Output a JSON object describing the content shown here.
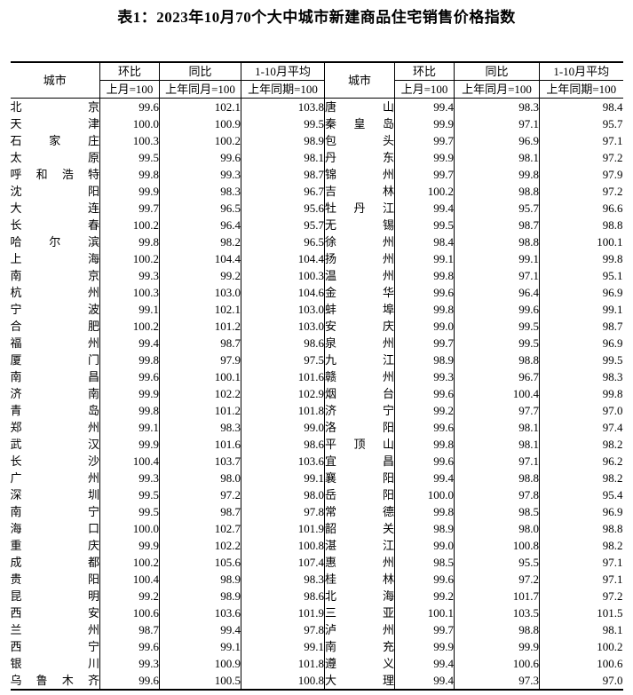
{
  "page": {
    "title": "表1：2023年10月70个大中城市新建商品住宅销售价格指数"
  },
  "table": {
    "header": {
      "city": "城市",
      "mom": "环比",
      "mom_sub": "上月=100",
      "yoy": "同比",
      "yoy_sub": "上年同月=100",
      "avg": "1-10月平均",
      "avg_sub": "上年同期=100"
    },
    "left_rows": [
      [
        "北京",
        "99.6",
        "102.1",
        "103.8"
      ],
      [
        "天津",
        "100.0",
        "100.9",
        "99.5"
      ],
      [
        "石家庄",
        "100.3",
        "100.2",
        "98.9"
      ],
      [
        "太原",
        "99.5",
        "99.6",
        "98.1"
      ],
      [
        "呼和浩特",
        "99.8",
        "99.3",
        "98.7"
      ],
      [
        "沈阳",
        "99.9",
        "98.3",
        "96.7"
      ],
      [
        "大连",
        "99.7",
        "96.5",
        "95.6"
      ],
      [
        "长春",
        "100.2",
        "96.4",
        "95.7"
      ],
      [
        "哈尔滨",
        "99.8",
        "98.2",
        "96.5"
      ],
      [
        "上海",
        "100.2",
        "104.4",
        "104.4"
      ],
      [
        "南京",
        "99.3",
        "99.2",
        "100.3"
      ],
      [
        "杭州",
        "100.3",
        "103.0",
        "104.6"
      ],
      [
        "宁波",
        "99.1",
        "102.1",
        "103.0"
      ],
      [
        "合肥",
        "100.2",
        "101.2",
        "103.0"
      ],
      [
        "福州",
        "99.4",
        "98.7",
        "98.6"
      ],
      [
        "厦门",
        "99.8",
        "97.9",
        "97.5"
      ],
      [
        "南昌",
        "99.6",
        "100.1",
        "101.6"
      ],
      [
        "济南",
        "99.9",
        "102.2",
        "102.9"
      ],
      [
        "青岛",
        "99.8",
        "101.2",
        "101.8"
      ],
      [
        "郑州",
        "99.1",
        "98.3",
        "99.0"
      ],
      [
        "武汉",
        "99.9",
        "101.6",
        "98.6"
      ],
      [
        "长沙",
        "100.4",
        "103.7",
        "103.6"
      ],
      [
        "广州",
        "99.3",
        "98.0",
        "99.1"
      ],
      [
        "深圳",
        "99.5",
        "97.2",
        "98.0"
      ],
      [
        "南宁",
        "99.5",
        "98.7",
        "97.8"
      ],
      [
        "海口",
        "100.0",
        "102.7",
        "101.9"
      ],
      [
        "重庆",
        "99.9",
        "102.2",
        "100.8"
      ],
      [
        "成都",
        "100.2",
        "105.6",
        "107.4"
      ],
      [
        "贵阳",
        "100.4",
        "98.9",
        "98.3"
      ],
      [
        "昆明",
        "99.2",
        "98.9",
        "98.6"
      ],
      [
        "西安",
        "100.6",
        "103.6",
        "101.9"
      ],
      [
        "兰州",
        "98.7",
        "99.4",
        "97.8"
      ],
      [
        "西宁",
        "99.6",
        "99.1",
        "99.1"
      ],
      [
        "银川",
        "99.3",
        "100.9",
        "101.8"
      ],
      [
        "乌鲁木齐",
        "99.6",
        "100.5",
        "100.8"
      ]
    ],
    "right_rows": [
      [
        "唐山",
        "99.4",
        "98.3",
        "98.4"
      ],
      [
        "秦皇岛",
        "99.9",
        "97.1",
        "95.7"
      ],
      [
        "包头",
        "99.7",
        "96.9",
        "97.1"
      ],
      [
        "丹东",
        "99.9",
        "98.1",
        "97.2"
      ],
      [
        "锦州",
        "99.7",
        "99.8",
        "97.9"
      ],
      [
        "吉林",
        "100.2",
        "98.8",
        "97.2"
      ],
      [
        "牡丹江",
        "99.4",
        "95.7",
        "96.6"
      ],
      [
        "无锡",
        "99.5",
        "98.7",
        "98.8"
      ],
      [
        "徐州",
        "98.4",
        "98.8",
        "100.1"
      ],
      [
        "扬州",
        "99.1",
        "99.1",
        "99.8"
      ],
      [
        "温州",
        "99.8",
        "97.1",
        "95.1"
      ],
      [
        "金华",
        "99.6",
        "96.4",
        "96.9"
      ],
      [
        "蚌埠",
        "99.8",
        "99.6",
        "99.1"
      ],
      [
        "安庆",
        "99.0",
        "99.5",
        "98.7"
      ],
      [
        "泉州",
        "99.7",
        "99.5",
        "96.9"
      ],
      [
        "九江",
        "98.9",
        "98.8",
        "99.5"
      ],
      [
        "赣州",
        "99.3",
        "96.7",
        "98.3"
      ],
      [
        "烟台",
        "99.6",
        "100.4",
        "99.8"
      ],
      [
        "济宁",
        "99.2",
        "97.7",
        "97.0"
      ],
      [
        "洛阳",
        "99.6",
        "98.1",
        "97.4"
      ],
      [
        "平顶山",
        "99.8",
        "98.1",
        "98.2"
      ],
      [
        "宜昌",
        "99.6",
        "97.1",
        "96.2"
      ],
      [
        "襄阳",
        "99.4",
        "98.8",
        "98.2"
      ],
      [
        "岳阳",
        "100.0",
        "97.8",
        "95.4"
      ],
      [
        "常德",
        "99.8",
        "98.5",
        "96.9"
      ],
      [
        "韶关",
        "98.9",
        "98.0",
        "98.8"
      ],
      [
        "湛江",
        "99.0",
        "100.8",
        "98.2"
      ],
      [
        "惠州",
        "98.5",
        "95.5",
        "97.1"
      ],
      [
        "桂林",
        "99.6",
        "97.2",
        "97.1"
      ],
      [
        "北海",
        "99.2",
        "101.7",
        "97.2"
      ],
      [
        "三亚",
        "100.1",
        "103.5",
        "101.5"
      ],
      [
        "泸州",
        "99.7",
        "98.8",
        "98.1"
      ],
      [
        "南充",
        "99.9",
        "99.9",
        "100.2"
      ],
      [
        "遵义",
        "99.4",
        "100.6",
        "100.6"
      ],
      [
        "大理",
        "99.4",
        "97.3",
        "97.0"
      ]
    ]
  }
}
